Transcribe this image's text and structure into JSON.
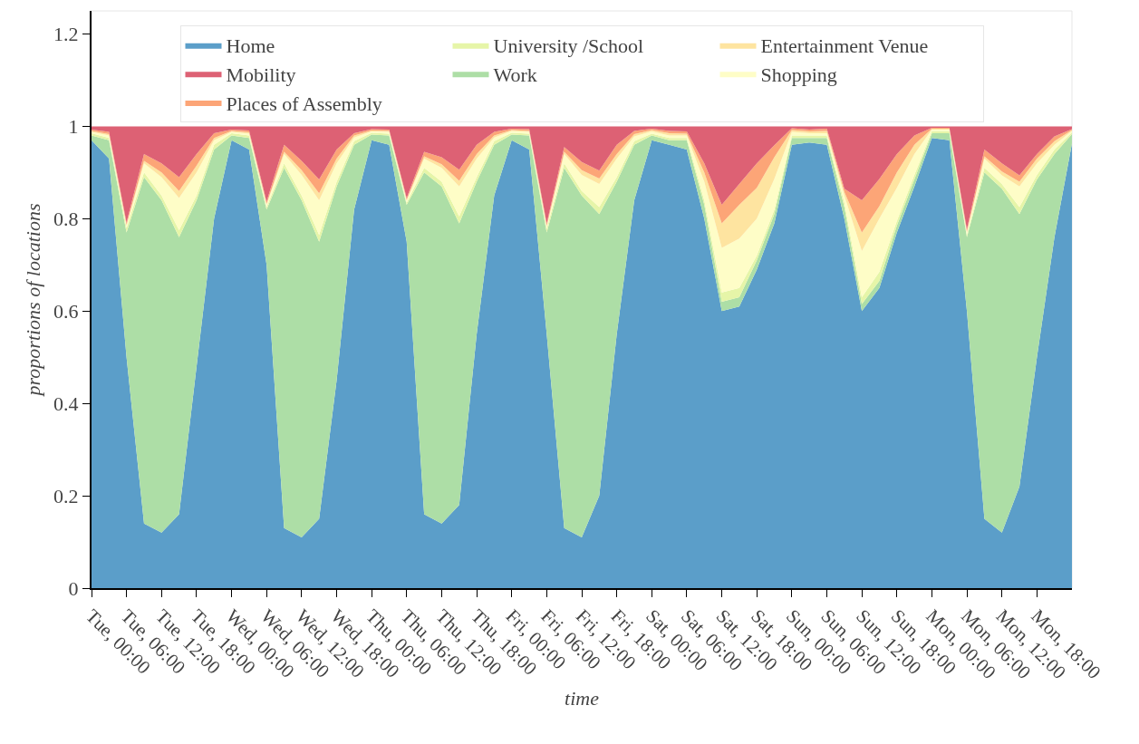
{
  "chart_data": {
    "type": "area",
    "stacked": true,
    "xlabel": "time",
    "ylabel": "proportions of locations",
    "legend": "top",
    "grid": false,
    "categories": [
      "Tue, 00:00",
      null,
      "Tue, 06:00",
      null,
      "Tue, 12:00",
      null,
      "Tue, 18:00",
      null,
      "Wed, 00:00",
      null,
      "Wed, 06:00",
      null,
      "Wed, 12:00",
      null,
      "Wed, 18:00",
      null,
      "Thu, 00:00",
      null,
      "Thu, 06:00",
      null,
      "Thu, 12:00",
      null,
      "Thu, 18:00",
      null,
      "Fri, 00:00",
      null,
      "Fri, 06:00",
      null,
      "Fri, 12:00",
      null,
      "Fri, 18:00",
      null,
      "Sat, 00:00",
      null,
      "Sat, 06:00",
      null,
      "Sat, 12:00",
      null,
      "Sat, 18:00",
      null,
      "Sun, 00:00",
      null,
      "Sun, 06:00",
      null,
      "Sun, 12:00",
      null,
      "Sun, 18:00",
      null,
      "Mon, 00:00",
      null,
      "Mon, 06:00",
      null,
      "Mon, 12:00",
      null,
      "Mon, 18:00",
      null,
      null
    ],
    "ylim": [
      0,
      1.25
    ],
    "yticks": [
      0,
      0.2,
      0.4,
      0.6,
      0.8,
      1,
      1.2
    ],
    "series": [
      {
        "name": "Home",
        "color": "#5b9ec9",
        "values": [
          0.97,
          0.93,
          0.5,
          0.14,
          0.12,
          0.16,
          0.48,
          0.8,
          0.97,
          0.95,
          0.7,
          0.13,
          0.11,
          0.15,
          0.45,
          0.82,
          0.97,
          0.96,
          0.75,
          0.16,
          0.14,
          0.18,
          0.55,
          0.85,
          0.97,
          0.95,
          0.55,
          0.13,
          0.11,
          0.2,
          0.55,
          0.84,
          0.97,
          0.96,
          0.95,
          0.8,
          0.6,
          0.61,
          0.69,
          0.79,
          0.96,
          0.965,
          0.96,
          0.8,
          0.6,
          0.65,
          0.77,
          0.87,
          0.975,
          0.97,
          0.6,
          0.15,
          0.12,
          0.22,
          0.5,
          0.76,
          0.963
        ]
      },
      {
        "name": "Work",
        "color": "#addea6",
        "values": [
          0.01,
          0.04,
          0.27,
          0.75,
          0.72,
          0.6,
          0.36,
          0.15,
          0.01,
          0.025,
          0.12,
          0.78,
          0.73,
          0.6,
          0.42,
          0.14,
          0.012,
          0.02,
          0.08,
          0.74,
          0.73,
          0.61,
          0.33,
          0.11,
          0.012,
          0.03,
          0.22,
          0.78,
          0.74,
          0.61,
          0.33,
          0.12,
          0.01,
          0.01,
          0.02,
          0.03,
          0.02,
          0.02,
          0.02,
          0.02,
          0.015,
          0.01,
          0.015,
          0.025,
          0.015,
          0.015,
          0.015,
          0.015,
          0.01,
          0.015,
          0.16,
          0.75,
          0.745,
          0.59,
          0.385,
          0.18,
          0.02
        ]
      },
      {
        "name": "University /School",
        "color": "#e6f5a8",
        "values": [
          0.005,
          0.005,
          0.01,
          0.01,
          0.01,
          0.015,
          0.01,
          0.01,
          0.005,
          0.005,
          0.005,
          0.01,
          0.01,
          0.015,
          0.01,
          0.008,
          0.004,
          0.004,
          0.005,
          0.01,
          0.01,
          0.015,
          0.01,
          0.008,
          0.004,
          0.004,
          0.008,
          0.01,
          0.01,
          0.015,
          0.01,
          0.008,
          0.004,
          0.005,
          0.005,
          0.01,
          0.02,
          0.02,
          0.01,
          0.01,
          0.005,
          0.005,
          0.005,
          0.01,
          0.015,
          0.02,
          0.01,
          0.01,
          0.005,
          0.005,
          0.005,
          0.01,
          0.01,
          0.015,
          0.01,
          0.01,
          0.004
        ]
      },
      {
        "name": "Shopping",
        "color": "#fefdc7",
        "values": [
          0.003,
          0.005,
          0.005,
          0.02,
          0.04,
          0.07,
          0.05,
          0.01,
          0.003,
          0.004,
          0.005,
          0.02,
          0.045,
          0.075,
          0.04,
          0.008,
          0.003,
          0.004,
          0.004,
          0.02,
          0.03,
          0.065,
          0.04,
          0.008,
          0.004,
          0.004,
          0.005,
          0.02,
          0.035,
          0.05,
          0.04,
          0.01,
          0.005,
          0.005,
          0.005,
          0.04,
          0.097,
          0.107,
          0.08,
          0.066,
          0.008,
          0.005,
          0.005,
          0.015,
          0.1,
          0.115,
          0.072,
          0.045,
          0.003,
          0.003,
          0.005,
          0.02,
          0.019,
          0.045,
          0.025,
          0.01,
          0.003
        ]
      },
      {
        "name": "Entertainment Venue",
        "color": "#fee4a0",
        "values": [
          0.002,
          0.003,
          0.002,
          0.005,
          0.01,
          0.015,
          0.015,
          0.005,
          0.002,
          0.003,
          0.002,
          0.005,
          0.01,
          0.015,
          0.01,
          0.004,
          0.002,
          0.002,
          0.002,
          0.005,
          0.008,
          0.012,
          0.01,
          0.004,
          0.002,
          0.002,
          0.002,
          0.005,
          0.01,
          0.012,
          0.01,
          0.005,
          0.003,
          0.005,
          0.004,
          0.02,
          0.053,
          0.073,
          0.067,
          0.047,
          0.004,
          0.004,
          0.005,
          0.008,
          0.04,
          0.027,
          0.033,
          0.02,
          0.002,
          0.002,
          0.002,
          0.005,
          0.008,
          0.01,
          0.01,
          0.008,
          0.002
        ]
      },
      {
        "name": "Places of Assembly",
        "color": "#fca577",
        "values": [
          0.003,
          0.005,
          0.005,
          0.015,
          0.02,
          0.03,
          0.025,
          0.01,
          0.003,
          0.004,
          0.005,
          0.015,
          0.02,
          0.03,
          0.02,
          0.005,
          0.003,
          0.003,
          0.004,
          0.01,
          0.015,
          0.024,
          0.02,
          0.008,
          0.003,
          0.004,
          0.005,
          0.01,
          0.018,
          0.017,
          0.02,
          0.007,
          0.003,
          0.005,
          0.005,
          0.02,
          0.04,
          0.045,
          0.053,
          0.026,
          0.004,
          0.004,
          0.005,
          0.007,
          0.07,
          0.059,
          0.04,
          0.02,
          0.002,
          0.002,
          0.005,
          0.015,
          0.018,
          0.014,
          0.01,
          0.01,
          0.002
        ]
      },
      {
        "name": "Mobility",
        "color": "#dd6174",
        "values": [
          0.007,
          0.012,
          0.208,
          0.06,
          0.08,
          0.11,
          0.06,
          0.015,
          0.007,
          0.009,
          0.163,
          0.04,
          0.075,
          0.115,
          0.05,
          0.015,
          0.006,
          0.007,
          0.155,
          0.055,
          0.067,
          0.094,
          0.04,
          0.012,
          0.005,
          0.006,
          0.21,
          0.045,
          0.077,
          0.096,
          0.04,
          0.01,
          0.005,
          0.01,
          0.011,
          0.08,
          0.17,
          0.125,
          0.08,
          0.041,
          0.004,
          0.007,
          0.005,
          0.135,
          0.16,
          0.114,
          0.06,
          0.02,
          0.003,
          0.003,
          0.223,
          0.05,
          0.08,
          0.106,
          0.06,
          0.022,
          0.006
        ]
      }
    ]
  }
}
